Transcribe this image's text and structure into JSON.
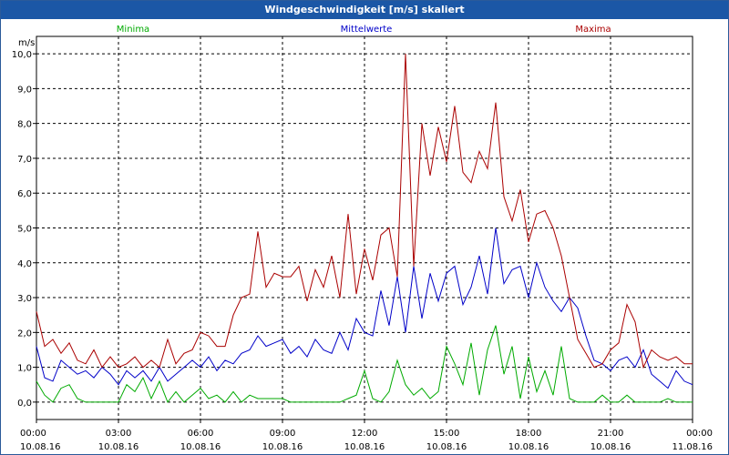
{
  "title": "Windgeschwindigkeit [m/s] skaliert",
  "chart_data": {
    "type": "line",
    "title": "Windgeschwindigkeit [m/s] skaliert",
    "ylabel": "m/s",
    "xlabel": "",
    "ylim": [
      -0.5,
      10.5
    ],
    "y_ticks": [
      "0,0",
      "1,0",
      "2,0",
      "3,0",
      "4,0",
      "5,0",
      "6,0",
      "7,0",
      "8,0",
      "9,0",
      "10,0"
    ],
    "x_ticks": [
      {
        "time": "00:00",
        "date": "10.08.16"
      },
      {
        "time": "03:00",
        "date": "10.08.16"
      },
      {
        "time": "06:00",
        "date": "10.08.16"
      },
      {
        "time": "09:00",
        "date": "10.08.16"
      },
      {
        "time": "12:00",
        "date": "10.08.16"
      },
      {
        "time": "15:00",
        "date": "10.08.16"
      },
      {
        "time": "18:00",
        "date": "10.08.16"
      },
      {
        "time": "21:00",
        "date": "10.08.16"
      },
      {
        "time": "00:00",
        "date": "11.08.16"
      }
    ],
    "x_unit": "hours",
    "series": [
      {
        "name": "Minima",
        "color": "#00aa00",
        "x": [
          0,
          0.3,
          0.6,
          0.9,
          1.2,
          1.5,
          1.8,
          2.1,
          2.4,
          2.7,
          3.0,
          3.3,
          3.6,
          3.9,
          4.2,
          4.5,
          4.8,
          5.1,
          5.4,
          5.7,
          6.0,
          6.3,
          6.6,
          6.9,
          7.2,
          7.5,
          7.8,
          8.1,
          8.4,
          8.7,
          9.0,
          9.3,
          9.6,
          9.9,
          10.2,
          10.5,
          10.8,
          11.1,
          11.4,
          11.7,
          12.0,
          12.3,
          12.6,
          12.9,
          13.2,
          13.5,
          13.8,
          14.1,
          14.4,
          14.7,
          15.0,
          15.3,
          15.6,
          15.9,
          16.2,
          16.5,
          16.8,
          17.1,
          17.4,
          17.7,
          18.0,
          18.3,
          18.6,
          18.9,
          19.2,
          19.5,
          19.8,
          20.1,
          20.4,
          20.7,
          21.0,
          21.3,
          21.6,
          21.9,
          22.2,
          22.5,
          22.8,
          23.1,
          23.4,
          23.7,
          24.0
        ],
        "values": [
          0.6,
          0.2,
          0.0,
          0.4,
          0.5,
          0.1,
          0.0,
          0.0,
          0.0,
          0.0,
          0.0,
          0.5,
          0.3,
          0.7,
          0.1,
          0.6,
          0.0,
          0.3,
          0.0,
          0.2,
          0.4,
          0.1,
          0.2,
          0.0,
          0.3,
          0.0,
          0.2,
          0.1,
          0.1,
          0.1,
          0.1,
          0.0,
          0.0,
          0.0,
          0.0,
          0.0,
          0.0,
          0.0,
          0.1,
          0.2,
          0.9,
          0.1,
          0.0,
          0.3,
          1.2,
          0.5,
          0.2,
          0.4,
          0.1,
          0.3,
          1.6,
          1.1,
          0.5,
          1.7,
          0.2,
          1.5,
          2.2,
          0.8,
          1.6,
          0.1,
          1.3,
          0.3,
          0.9,
          0.2,
          1.6,
          0.1,
          0.0,
          0.0,
          0.0,
          0.2,
          0.0,
          0.0,
          0.2,
          0.0,
          0.0,
          0.0,
          0.0,
          0.1,
          0.0,
          0.0,
          0.0
        ]
      },
      {
        "name": "Mittelwerte",
        "color": "#0000c8",
        "x": [
          0,
          0.3,
          0.6,
          0.9,
          1.2,
          1.5,
          1.8,
          2.1,
          2.4,
          2.7,
          3.0,
          3.3,
          3.6,
          3.9,
          4.2,
          4.5,
          4.8,
          5.1,
          5.4,
          5.7,
          6.0,
          6.3,
          6.6,
          6.9,
          7.2,
          7.5,
          7.8,
          8.1,
          8.4,
          8.7,
          9.0,
          9.3,
          9.6,
          9.9,
          10.2,
          10.5,
          10.8,
          11.1,
          11.4,
          11.7,
          12.0,
          12.3,
          12.6,
          12.9,
          13.2,
          13.5,
          13.8,
          14.1,
          14.4,
          14.7,
          15.0,
          15.3,
          15.6,
          15.9,
          16.2,
          16.5,
          16.8,
          17.1,
          17.4,
          17.7,
          18.0,
          18.3,
          18.6,
          18.9,
          19.2,
          19.5,
          19.8,
          20.1,
          20.4,
          20.7,
          21.0,
          21.3,
          21.6,
          21.9,
          22.2,
          22.5,
          22.8,
          23.1,
          23.4,
          23.7,
          24.0
        ],
        "values": [
          1.6,
          0.7,
          0.6,
          1.2,
          1.0,
          0.8,
          0.9,
          0.7,
          1.0,
          0.8,
          0.5,
          0.9,
          0.7,
          0.9,
          0.6,
          1.0,
          0.6,
          0.8,
          1.0,
          1.2,
          1.0,
          1.3,
          0.9,
          1.2,
          1.1,
          1.4,
          1.5,
          1.9,
          1.6,
          1.7,
          1.8,
          1.4,
          1.6,
          1.3,
          1.8,
          1.5,
          1.4,
          2.0,
          1.5,
          2.4,
          2.0,
          1.9,
          3.2,
          2.2,
          3.6,
          2.0,
          3.9,
          2.4,
          3.7,
          2.9,
          3.7,
          3.9,
          2.8,
          3.3,
          4.2,
          3.1,
          5.0,
          3.4,
          3.8,
          3.9,
          3.0,
          4.0,
          3.3,
          2.9,
          2.6,
          3.0,
          2.7,
          1.9,
          1.2,
          1.1,
          0.9,
          1.2,
          1.3,
          1.0,
          1.5,
          0.8,
          0.6,
          0.4,
          0.9,
          0.6,
          0.5
        ]
      },
      {
        "name": "Maxima",
        "color": "#aa0000",
        "x": [
          0,
          0.3,
          0.6,
          0.9,
          1.2,
          1.5,
          1.8,
          2.1,
          2.4,
          2.7,
          3.0,
          3.3,
          3.6,
          3.9,
          4.2,
          4.5,
          4.8,
          5.1,
          5.4,
          5.7,
          6.0,
          6.3,
          6.6,
          6.9,
          7.2,
          7.5,
          7.8,
          8.1,
          8.4,
          8.7,
          9.0,
          9.3,
          9.6,
          9.9,
          10.2,
          10.5,
          10.8,
          11.1,
          11.4,
          11.7,
          12.0,
          12.3,
          12.6,
          12.9,
          13.2,
          13.5,
          13.8,
          14.1,
          14.4,
          14.7,
          15.0,
          15.3,
          15.6,
          15.9,
          16.2,
          16.5,
          16.8,
          17.1,
          17.4,
          17.7,
          18.0,
          18.3,
          18.6,
          18.9,
          19.2,
          19.5,
          19.8,
          20.1,
          20.4,
          20.7,
          21.0,
          21.3,
          21.6,
          21.9,
          22.2,
          22.5,
          22.8,
          23.1,
          23.4,
          23.7,
          24.0
        ],
        "values": [
          2.6,
          1.6,
          1.8,
          1.4,
          1.7,
          1.2,
          1.1,
          1.5,
          1.0,
          1.3,
          1.0,
          1.1,
          1.3,
          1.0,
          1.2,
          1.0,
          1.8,
          1.1,
          1.4,
          1.5,
          2.0,
          1.9,
          1.6,
          1.6,
          2.5,
          3.0,
          3.1,
          4.9,
          3.3,
          3.7,
          3.6,
          3.6,
          3.9,
          2.9,
          3.8,
          3.3,
          4.2,
          3.0,
          5.4,
          3.1,
          4.4,
          3.5,
          4.8,
          5.0,
          3.6,
          10.0,
          3.9,
          8.0,
          6.5,
          7.9,
          6.9,
          8.5,
          6.6,
          6.3,
          7.2,
          6.7,
          8.6,
          5.9,
          5.2,
          6.1,
          4.6,
          5.4,
          5.5,
          5.0,
          4.2,
          3.0,
          1.8,
          1.4,
          1.0,
          1.1,
          1.5,
          1.7,
          2.8,
          2.3,
          1.0,
          1.5,
          1.3,
          1.2,
          1.3,
          1.1,
          1.1
        ]
      }
    ]
  }
}
